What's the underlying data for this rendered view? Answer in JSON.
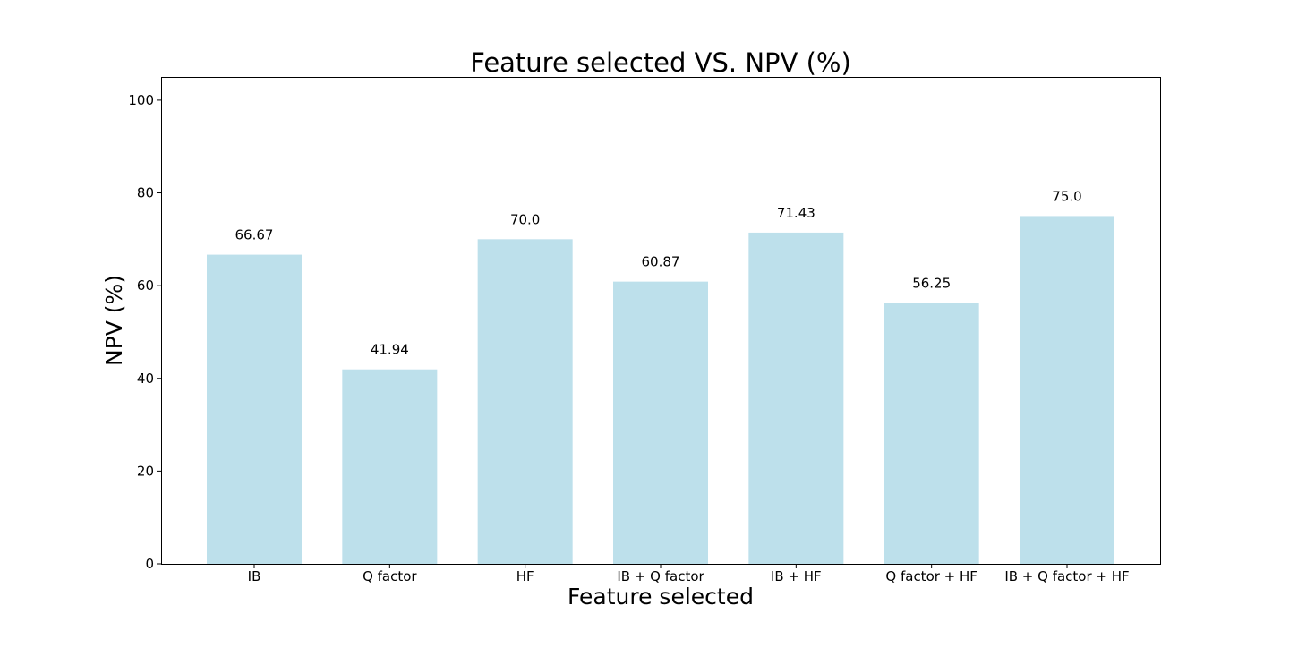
{
  "chart_data": {
    "type": "bar",
    "title": "Feature selected VS. NPV (%)",
    "xlabel": "Feature selected",
    "ylabel": "NPV (%)",
    "categories": [
      "IB",
      "Q factor",
      "HF",
      "IB + Q factor",
      "IB + HF",
      "Q factor + HF",
      "IB + Q factor + HF"
    ],
    "values": [
      66.67,
      41.94,
      70.0,
      60.87,
      71.43,
      56.25,
      75.0
    ],
    "value_labels": [
      "66.67",
      "41.94",
      "70.0",
      "60.87",
      "71.43",
      "56.25",
      "75.0"
    ],
    "ylim": [
      0,
      105
    ],
    "yticks": [
      0,
      20,
      40,
      60,
      80,
      100
    ],
    "grid": false,
    "bar_color": "#add8e6"
  }
}
